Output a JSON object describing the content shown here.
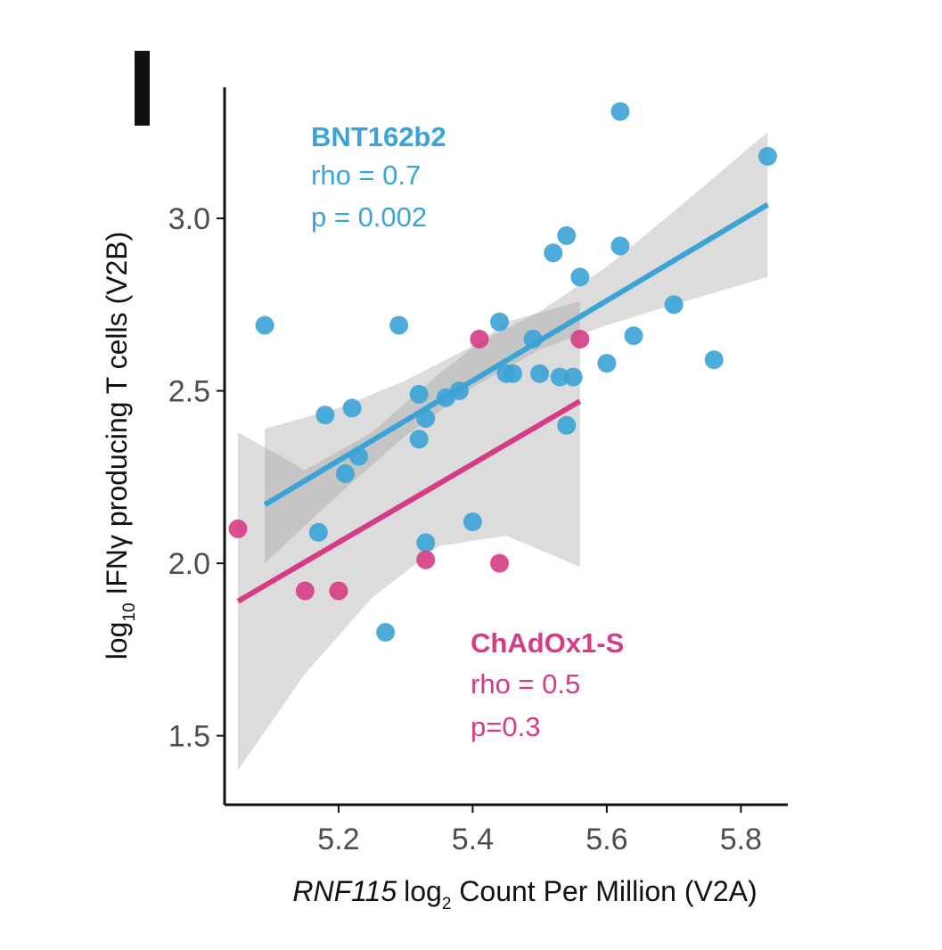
{
  "panel_label": "I",
  "chart_data": {
    "type": "scatter",
    "xlabel": {
      "gene": "RNF115",
      "prefix": "log",
      "subscript": "2",
      "rest": " Count Per Million (V2A)"
    },
    "ylabel": {
      "prefix": "log",
      "subscript": "10",
      "rest": " IFNγ producing T cells (V2B)"
    },
    "xlim": [
      5.03,
      5.87
    ],
    "ylim": [
      1.3,
      3.38
    ],
    "xticks": [
      5.2,
      5.4,
      5.6,
      5.8
    ],
    "xtick_labels": [
      "5.2",
      "5.4",
      "5.6",
      "5.8"
    ],
    "yticks": [
      1.5,
      2.0,
      2.5,
      3.0
    ],
    "ytick_labels": [
      "1.5",
      "2.0",
      "2.5",
      "3.0"
    ],
    "series": [
      {
        "name": "BNT162b2",
        "color": "#3ba3d6",
        "rho_label": "rho = 0.7",
        "p_label": "p = 0.002",
        "points": [
          [
            5.09,
            2.69
          ],
          [
            5.18,
            2.43
          ],
          [
            5.21,
            2.26
          ],
          [
            5.22,
            2.45
          ],
          [
            5.23,
            2.31
          ],
          [
            5.29,
            2.69
          ],
          [
            5.32,
            2.49
          ],
          [
            5.32,
            2.36
          ],
          [
            5.33,
            2.42
          ],
          [
            5.36,
            2.48
          ],
          [
            5.38,
            2.5
          ],
          [
            5.44,
            2.7
          ],
          [
            5.45,
            2.55
          ],
          [
            5.46,
            2.55
          ],
          [
            5.49,
            2.65
          ],
          [
            5.5,
            2.55
          ],
          [
            5.52,
            2.9
          ],
          [
            5.53,
            2.54
          ],
          [
            5.54,
            2.95
          ],
          [
            5.55,
            2.54
          ],
          [
            5.56,
            2.83
          ],
          [
            5.54,
            2.4
          ],
          [
            5.6,
            2.58
          ],
          [
            5.62,
            3.31
          ],
          [
            5.62,
            2.92
          ],
          [
            5.64,
            2.66
          ],
          [
            5.7,
            2.75
          ],
          [
            5.76,
            2.59
          ],
          [
            5.84,
            3.18
          ],
          [
            5.17,
            2.09
          ],
          [
            5.33,
            2.06
          ],
          [
            5.4,
            2.12
          ],
          [
            5.27,
            1.8
          ]
        ],
        "fit": {
          "x": [
            5.09,
            5.84
          ],
          "y": [
            2.17,
            3.04
          ]
        },
        "ci": {
          "x": [
            5.09,
            5.2,
            5.3,
            5.4,
            5.5,
            5.6,
            5.7,
            5.84
          ],
          "lower": [
            2.0,
            2.2,
            2.37,
            2.51,
            2.62,
            2.69,
            2.75,
            2.83
          ],
          "upper": [
            2.39,
            2.45,
            2.53,
            2.63,
            2.73,
            2.86,
            3.02,
            3.25
          ]
        }
      },
      {
        "name": "ChAdOx1-S",
        "color": "#d63c86",
        "rho_label": "rho = 0.5",
        "p_label": "p=0.3",
        "points": [
          [
            5.05,
            2.1
          ],
          [
            5.15,
            1.92
          ],
          [
            5.2,
            1.92
          ],
          [
            5.33,
            2.01
          ],
          [
            5.41,
            2.65
          ],
          [
            5.44,
            2.0
          ],
          [
            5.56,
            2.65
          ]
        ],
        "fit": {
          "x": [
            5.05,
            5.56
          ],
          "y": [
            1.89,
            2.47
          ]
        },
        "ci": {
          "x": [
            5.05,
            5.15,
            5.25,
            5.35,
            5.45,
            5.56
          ],
          "lower": [
            1.4,
            1.68,
            1.9,
            2.05,
            2.08,
            1.99
          ],
          "upper": [
            2.38,
            2.27,
            2.38,
            2.55,
            2.7,
            2.76
          ]
        }
      }
    ]
  }
}
